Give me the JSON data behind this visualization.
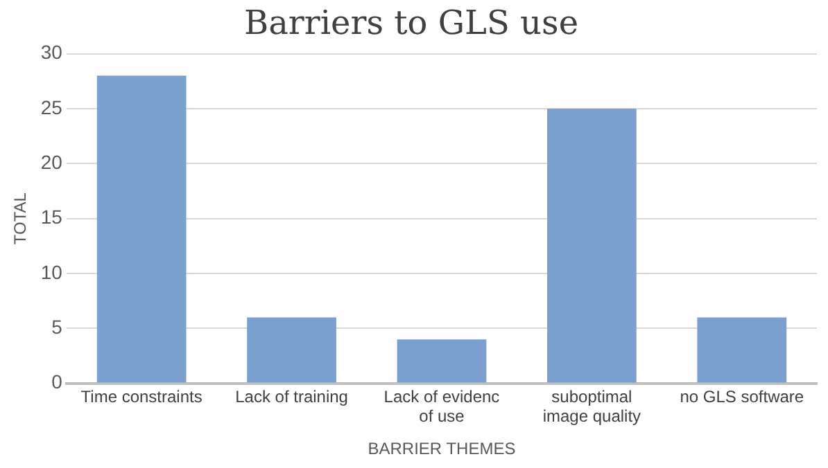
{
  "chart_data": {
    "type": "bar",
    "title": "Barriers to GLS use",
    "xlabel": "BARRIER THEMES",
    "ylabel": "TOTAL",
    "categories": [
      "Time constraints",
      "Lack of training",
      "Lack of evidenc of use",
      "suboptimal image quality",
      "no GLS software"
    ],
    "values": [
      28,
      6,
      4,
      25,
      6
    ],
    "color": "#7ba0d0",
    "ylim": [
      0,
      30
    ],
    "yticks": [
      0,
      5,
      10,
      15,
      20,
      25,
      30
    ],
    "grid": "y",
    "legend": false
  }
}
